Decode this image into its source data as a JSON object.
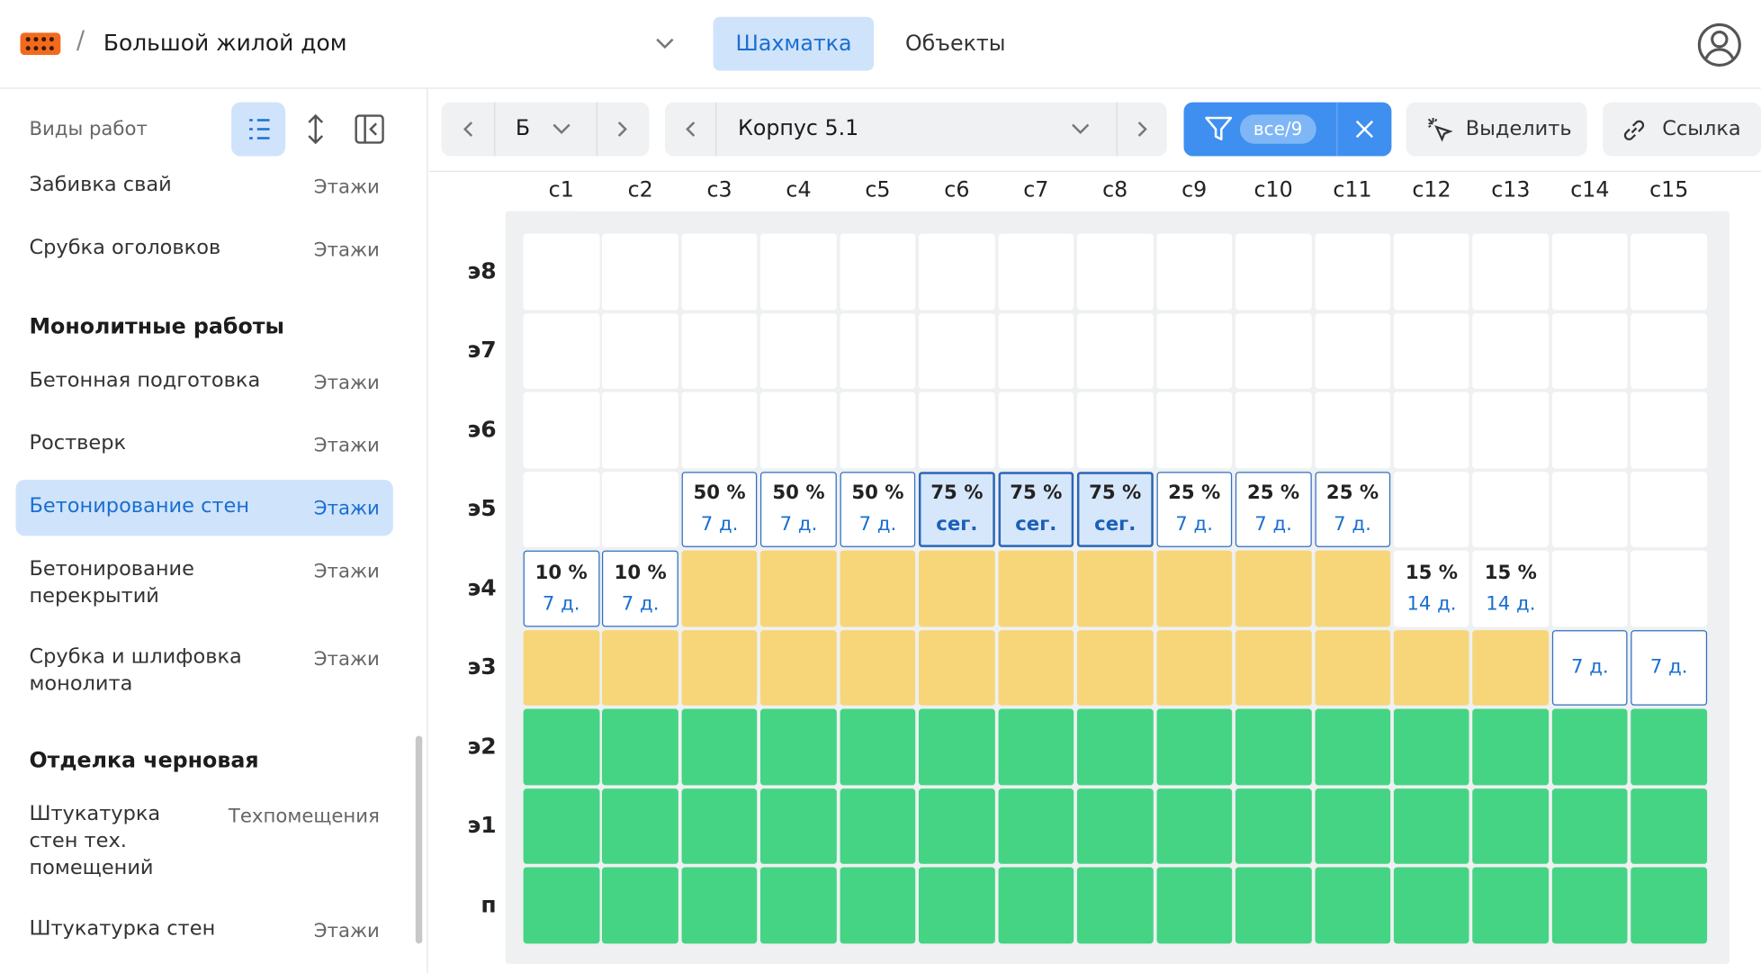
{
  "header": {
    "project": "Большой жилой дом",
    "tabs": [
      {
        "label": "Шахматка",
        "active": true
      },
      {
        "label": "Объекты",
        "active": false
      }
    ]
  },
  "sidebar": {
    "title": "Виды работ",
    "groups": [
      {
        "items": [
          {
            "label": "Забивка свай",
            "scope": "Этажи"
          },
          {
            "label": "Срубка оголовков",
            "scope": "Этажи"
          }
        ]
      },
      {
        "name": "Монолитные работы",
        "items": [
          {
            "label": "Бетонная подготовка",
            "scope": "Этажи"
          },
          {
            "label": "Ростверк",
            "scope": "Этажи"
          },
          {
            "label": "Бетонирование стен",
            "scope": "Этажи",
            "selected": true
          },
          {
            "label": "Бетонирование перекрытий",
            "scope": "Этажи"
          },
          {
            "label": "Срубка и шлифовка монолита",
            "scope": "Этажи"
          }
        ]
      },
      {
        "name": "Отделка черновая",
        "items": [
          {
            "label": "Штукатурка стен тех. помещений",
            "scope": "Техпомещения"
          },
          {
            "label": "Штукатурка стен",
            "scope": "Этажи"
          }
        ]
      }
    ]
  },
  "toolbar": {
    "section": "Б",
    "building": "Корпус 5.1",
    "filter": "все/9",
    "select": "Выделить",
    "link": "Ссылка"
  },
  "grid": {
    "columns": [
      "с1",
      "с2",
      "с3",
      "с4",
      "с5",
      "с6",
      "с7",
      "с8",
      "с9",
      "с10",
      "с11",
      "с12",
      "с13",
      "с14",
      "с15"
    ],
    "rows": [
      {
        "label": "э8",
        "cells": [
          {
            "state": "empty"
          },
          {
            "state": "empty"
          },
          {
            "state": "empty"
          },
          {
            "state": "empty"
          },
          {
            "state": "empty"
          },
          {
            "state": "empty"
          },
          {
            "state": "empty"
          },
          {
            "state": "empty"
          },
          {
            "state": "empty"
          },
          {
            "state": "empty"
          },
          {
            "state": "empty"
          },
          {
            "state": "empty"
          },
          {
            "state": "empty"
          },
          {
            "state": "empty"
          },
          {
            "state": "empty"
          }
        ]
      },
      {
        "label": "э7",
        "cells": [
          {
            "state": "empty"
          },
          {
            "state": "empty"
          },
          {
            "state": "empty"
          },
          {
            "state": "empty"
          },
          {
            "state": "empty"
          },
          {
            "state": "empty"
          },
          {
            "state": "empty"
          },
          {
            "state": "empty"
          },
          {
            "state": "empty"
          },
          {
            "state": "empty"
          },
          {
            "state": "empty"
          },
          {
            "state": "empty"
          },
          {
            "state": "empty"
          },
          {
            "state": "empty"
          },
          {
            "state": "empty"
          }
        ]
      },
      {
        "label": "э6",
        "cells": [
          {
            "state": "empty"
          },
          {
            "state": "empty"
          },
          {
            "state": "empty"
          },
          {
            "state": "empty"
          },
          {
            "state": "empty"
          },
          {
            "state": "empty"
          },
          {
            "state": "empty"
          },
          {
            "state": "empty"
          },
          {
            "state": "empty"
          },
          {
            "state": "empty"
          },
          {
            "state": "empty"
          },
          {
            "state": "empty"
          },
          {
            "state": "empty"
          },
          {
            "state": "empty"
          },
          {
            "state": "empty"
          }
        ]
      },
      {
        "label": "э5",
        "cells": [
          {
            "state": "empty"
          },
          {
            "state": "empty"
          },
          {
            "state": "task",
            "pct": "50 %",
            "days": "7 д."
          },
          {
            "state": "task",
            "pct": "50 %",
            "days": "7 д."
          },
          {
            "state": "task",
            "pct": "50 %",
            "days": "7 д."
          },
          {
            "state": "current",
            "pct": "75 %",
            "days": "сег."
          },
          {
            "state": "current",
            "pct": "75 %",
            "days": "сег."
          },
          {
            "state": "current",
            "pct": "75 %",
            "days": "сег."
          },
          {
            "state": "task",
            "pct": "25 %",
            "days": "7 д."
          },
          {
            "state": "task",
            "pct": "25 %",
            "days": "7 д."
          },
          {
            "state": "task",
            "pct": "25 %",
            "days": "7 д."
          },
          {
            "state": "empty"
          },
          {
            "state": "empty"
          },
          {
            "state": "empty"
          },
          {
            "state": "empty"
          }
        ]
      },
      {
        "label": "э4",
        "cells": [
          {
            "state": "task",
            "pct": "10 %",
            "days": "7 д."
          },
          {
            "state": "task",
            "pct": "10 %",
            "days": "7 д."
          },
          {
            "state": "work"
          },
          {
            "state": "work"
          },
          {
            "state": "work"
          },
          {
            "state": "work"
          },
          {
            "state": "work"
          },
          {
            "state": "work"
          },
          {
            "state": "work"
          },
          {
            "state": "work"
          },
          {
            "state": "work"
          },
          {
            "state": "plain",
            "pct": "15 %",
            "days": "14 д."
          },
          {
            "state": "plain",
            "pct": "15 %",
            "days": "14 д."
          },
          {
            "state": "empty"
          },
          {
            "state": "empty"
          }
        ]
      },
      {
        "label": "э3",
        "cells": [
          {
            "state": "work"
          },
          {
            "state": "work"
          },
          {
            "state": "work"
          },
          {
            "state": "work"
          },
          {
            "state": "work"
          },
          {
            "state": "work"
          },
          {
            "state": "work"
          },
          {
            "state": "work"
          },
          {
            "state": "work"
          },
          {
            "state": "work"
          },
          {
            "state": "work"
          },
          {
            "state": "work"
          },
          {
            "state": "work"
          },
          {
            "state": "task",
            "days": "7 д."
          },
          {
            "state": "task",
            "days": "7 д."
          }
        ]
      },
      {
        "label": "э2",
        "cells": [
          {
            "state": "done"
          },
          {
            "state": "done"
          },
          {
            "state": "done"
          },
          {
            "state": "done"
          },
          {
            "state": "done"
          },
          {
            "state": "done"
          },
          {
            "state": "done"
          },
          {
            "state": "done"
          },
          {
            "state": "done"
          },
          {
            "state": "done"
          },
          {
            "state": "done"
          },
          {
            "state": "done"
          },
          {
            "state": "done"
          },
          {
            "state": "done"
          },
          {
            "state": "done"
          }
        ]
      },
      {
        "label": "э1",
        "cells": [
          {
            "state": "done"
          },
          {
            "state": "done"
          },
          {
            "state": "done"
          },
          {
            "state": "done"
          },
          {
            "state": "done"
          },
          {
            "state": "done"
          },
          {
            "state": "done"
          },
          {
            "state": "done"
          },
          {
            "state": "done"
          },
          {
            "state": "done"
          },
          {
            "state": "done"
          },
          {
            "state": "done"
          },
          {
            "state": "done"
          },
          {
            "state": "done"
          },
          {
            "state": "done"
          }
        ]
      },
      {
        "label": "п",
        "cells": [
          {
            "state": "done"
          },
          {
            "state": "done"
          },
          {
            "state": "done"
          },
          {
            "state": "done"
          },
          {
            "state": "done"
          },
          {
            "state": "done"
          },
          {
            "state": "done"
          },
          {
            "state": "done"
          },
          {
            "state": "done"
          },
          {
            "state": "done"
          },
          {
            "state": "done"
          },
          {
            "state": "done"
          },
          {
            "state": "done"
          },
          {
            "state": "done"
          },
          {
            "state": "done"
          }
        ]
      }
    ]
  }
}
